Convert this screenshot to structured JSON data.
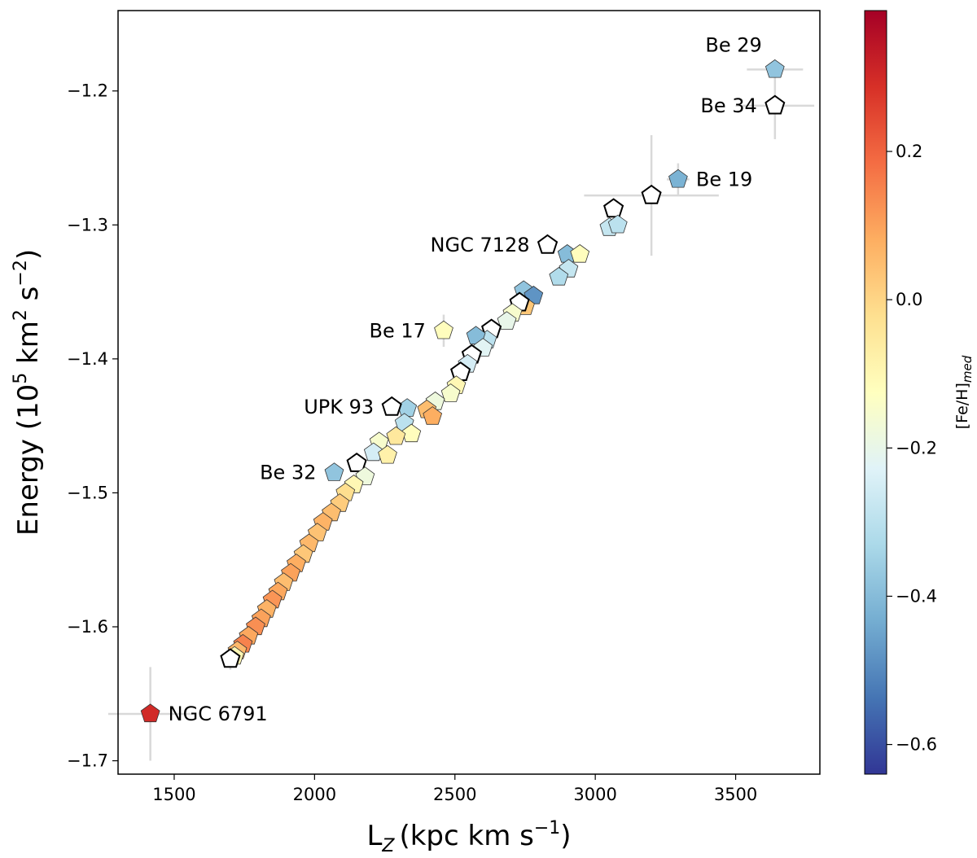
{
  "chart_data": {
    "type": "scatter",
    "marker": "pentagon",
    "title": "",
    "xlabel": "L",
    "xlabel_sub": "Z",
    "xlabel_units": "(kpc km s",
    "xlabel_units_sup": "−1",
    "xlabel_units_end": ")",
    "ylabel_pre": "Energy (10",
    "ylabel_sup1": "5",
    "ylabel_mid": " km",
    "ylabel_sup2": "2",
    "ylabel_mid2": " s",
    "ylabel_sup3": "−2",
    "ylabel_end": ")",
    "xlim": [
      1300,
      3800
    ],
    "ylim": [
      -1.71,
      -1.14
    ],
    "xticks": [
      1500,
      2000,
      2500,
      3000,
      3500
    ],
    "xtick_labels": [
      "1500",
      "2000",
      "2500",
      "3000",
      "3500"
    ],
    "yticks": [
      -1.2,
      -1.3,
      -1.4,
      -1.5,
      -1.6,
      -1.7
    ],
    "ytick_labels": [
      "−1.2",
      "−1.3",
      "−1.4",
      "−1.5",
      "−1.6",
      "−1.7"
    ],
    "colorbar": {
      "label_base": "[Fe/H]",
      "label_sub": "med",
      "range": [
        -0.64,
        0.39
      ],
      "cmap": "RdYlBu_r",
      "ticks": [
        0.2,
        0.0,
        -0.2,
        -0.4,
        -0.6
      ],
      "tick_labels": [
        "0.2",
        "0.0",
        "−0.2",
        "−0.4",
        "−0.6"
      ],
      "colors": [
        "#313695",
        "#4575b4",
        "#74add1",
        "#abd9e9",
        "#e0f3f8",
        "#ffffbf",
        "#fee090",
        "#fdae61",
        "#f46d43",
        "#d73027",
        "#a50026"
      ]
    },
    "labeled_points": [
      {
        "name": "Be 29",
        "x": 3640,
        "y": -1.184,
        "feh": -0.38,
        "xerr": 100,
        "yerr": 0.0,
        "label": "Be 29",
        "label_pos": "above-left"
      },
      {
        "name": "Be 34",
        "x": 3640,
        "y": -1.211,
        "feh": null,
        "xerr": 140,
        "yerr": 0.025,
        "label": "Be 34",
        "label_pos": "left"
      },
      {
        "name": "Be 19",
        "x": 3295,
        "y": -1.266,
        "feh": -0.42,
        "xerr": 40,
        "yerr": 0.012,
        "label": "Be 19",
        "label_pos": "right"
      },
      {
        "name": "NGC 7128",
        "x": 2830,
        "y": -1.315,
        "feh": null,
        "xerr": 0,
        "yerr": 0.0,
        "label": "NGC 7128",
        "label_pos": "left"
      },
      {
        "name": "Be 17",
        "x": 2460,
        "y": -1.379,
        "feh": -0.12,
        "xerr": 0,
        "yerr": 0.012,
        "label": "Be 17",
        "label_pos": "left"
      },
      {
        "name": "UPK 93",
        "x": 2275,
        "y": -1.436,
        "feh": null,
        "xerr": 0,
        "yerr": 0.0,
        "label": "UPK 93",
        "label_pos": "left"
      },
      {
        "name": "Be 32",
        "x": 2070,
        "y": -1.485,
        "feh": -0.38,
        "xerr": 0,
        "yerr": 0.0,
        "label": "Be 32",
        "label_pos": "left"
      },
      {
        "name": "NGC 6791",
        "x": 1415,
        "y": -1.665,
        "feh": 0.3,
        "xerr": 150,
        "yerr": 0.035,
        "label": "NGC 6791",
        "label_pos": "right"
      }
    ],
    "points": [
      {
        "x": 3200,
        "y": -1.278,
        "feh": null,
        "xerr": 240,
        "yerr": 0.045
      },
      {
        "x": 3065,
        "y": -1.288,
        "feh": null,
        "xerr": 0,
        "yerr": 0.0
      },
      {
        "x": 3050,
        "y": -1.302,
        "feh": -0.28,
        "xerr": 0,
        "yerr": 0.0
      },
      {
        "x": 3080,
        "y": -1.3,
        "feh": -0.3,
        "xerr": 0,
        "yerr": 0.0
      },
      {
        "x": 2900,
        "y": -1.322,
        "feh": -0.4,
        "xerr": 0,
        "yerr": 0.0
      },
      {
        "x": 2945,
        "y": -1.322,
        "feh": -0.12,
        "xerr": 0,
        "yerr": 0.0
      },
      {
        "x": 2905,
        "y": -1.333,
        "feh": -0.28,
        "xerr": 0,
        "yerr": 0.0
      },
      {
        "x": 2870,
        "y": -1.339,
        "feh": -0.32,
        "xerr": 0,
        "yerr": 0.0
      },
      {
        "x": 2745,
        "y": -1.349,
        "feh": -0.38,
        "xerr": 0,
        "yerr": 0.0
      },
      {
        "x": 2780,
        "y": -1.353,
        "feh": -0.48,
        "xerr": 0,
        "yerr": 0.0
      },
      {
        "x": 2750,
        "y": -1.361,
        "feh": 0.03,
        "xerr": 0,
        "yerr": 0.0
      },
      {
        "x": 2730,
        "y": -1.358,
        "feh": null,
        "xerr": 0,
        "yerr": 0.0
      },
      {
        "x": 2705,
        "y": -1.366,
        "feh": -0.15,
        "xerr": 0,
        "yerr": 0.0
      },
      {
        "x": 2685,
        "y": -1.372,
        "feh": -0.2,
        "xerr": 0,
        "yerr": 0.0
      },
      {
        "x": 2630,
        "y": -1.378,
        "feh": null,
        "xerr": 0,
        "yerr": 0.0
      },
      {
        "x": 2615,
        "y": -1.386,
        "feh": -0.3,
        "xerr": 0,
        "yerr": 0.0
      },
      {
        "x": 2575,
        "y": -1.383,
        "feh": -0.4,
        "xerr": 0,
        "yerr": 0.0
      },
      {
        "x": 2600,
        "y": -1.392,
        "feh": -0.22,
        "xerr": 0,
        "yerr": 0.0
      },
      {
        "x": 2560,
        "y": -1.397,
        "feh": null,
        "xerr": 0,
        "yerr": 0.0
      },
      {
        "x": 2545,
        "y": -1.404,
        "feh": -0.25,
        "xerr": 0,
        "yerr": 0.0
      },
      {
        "x": 2520,
        "y": -1.41,
        "feh": null,
        "xerr": 0,
        "yerr": 0.0
      },
      {
        "x": 2505,
        "y": -1.42,
        "feh": -0.1,
        "xerr": 0,
        "yerr": 0.0
      },
      {
        "x": 2485,
        "y": -1.426,
        "feh": -0.15,
        "xerr": 0,
        "yerr": 0.0
      },
      {
        "x": 2430,
        "y": -1.432,
        "feh": -0.18,
        "xerr": 0,
        "yerr": 0.0
      },
      {
        "x": 2400,
        "y": -1.438,
        "feh": 0.05,
        "xerr": 0,
        "yerr": 0.0
      },
      {
        "x": 2420,
        "y": -1.443,
        "feh": 0.08,
        "xerr": 0,
        "yerr": 0.0
      },
      {
        "x": 2330,
        "y": -1.437,
        "feh": -0.35,
        "xerr": 0,
        "yerr": 0.0
      },
      {
        "x": 2320,
        "y": -1.448,
        "feh": -0.3,
        "xerr": 0,
        "yerr": 0.0
      },
      {
        "x": 2345,
        "y": -1.456,
        "feh": -0.12,
        "xerr": 0,
        "yerr": 0.0
      },
      {
        "x": 2290,
        "y": -1.458,
        "feh": -0.05,
        "xerr": 0,
        "yerr": 0.0
      },
      {
        "x": 2230,
        "y": -1.462,
        "feh": -0.15,
        "xerr": 0,
        "yerr": 0.0
      },
      {
        "x": 2210,
        "y": -1.47,
        "feh": -0.25,
        "xerr": 0,
        "yerr": 0.0
      },
      {
        "x": 2260,
        "y": -1.472,
        "feh": -0.08,
        "xerr": 0,
        "yerr": 0.0
      },
      {
        "x": 2150,
        "y": -1.478,
        "feh": null,
        "xerr": 0,
        "yerr": 0.0
      },
      {
        "x": 2180,
        "y": -1.488,
        "feh": -0.18,
        "xerr": 0,
        "yerr": 0.0
      },
      {
        "x": 2140,
        "y": -1.494,
        "feh": -0.1,
        "xerr": 0,
        "yerr": 0.0
      },
      {
        "x": 2110,
        "y": -1.5,
        "feh": -0.02,
        "xerr": 0,
        "yerr": 0.0
      },
      {
        "x": 2090,
        "y": -1.508,
        "feh": 0.02,
        "xerr": 0,
        "yerr": 0.0
      },
      {
        "x": 2060,
        "y": -1.515,
        "feh": 0.05,
        "xerr": 0,
        "yerr": 0.0
      },
      {
        "x": 2030,
        "y": -1.522,
        "feh": 0.07,
        "xerr": 0,
        "yerr": 0.0
      },
      {
        "x": 2010,
        "y": -1.53,
        "feh": 0.04,
        "xerr": 0,
        "yerr": 0.0
      },
      {
        "x": 1980,
        "y": -1.538,
        "feh": 0.06,
        "xerr": 0,
        "yerr": 0.0
      },
      {
        "x": 1960,
        "y": -1.546,
        "feh": 0.03,
        "xerr": 0,
        "yerr": 0.0
      },
      {
        "x": 1935,
        "y": -1.553,
        "feh": 0.08,
        "xerr": 0,
        "yerr": 0.0
      },
      {
        "x": 1915,
        "y": -1.56,
        "feh": 0.1,
        "xerr": 0,
        "yerr": 0.0
      },
      {
        "x": 1890,
        "y": -1.567,
        "feh": 0.05,
        "xerr": 0,
        "yerr": 0.0
      },
      {
        "x": 1870,
        "y": -1.574,
        "feh": 0.09,
        "xerr": 0,
        "yerr": 0.0
      },
      {
        "x": 1850,
        "y": -1.58,
        "feh": 0.12,
        "xerr": 0,
        "yerr": 0.0
      },
      {
        "x": 1830,
        "y": -1.587,
        "feh": 0.07,
        "xerr": 0,
        "yerr": 0.0
      },
      {
        "x": 1810,
        "y": -1.594,
        "feh": 0.1,
        "xerr": 0,
        "yerr": 0.0
      },
      {
        "x": 1790,
        "y": -1.6,
        "feh": 0.13,
        "xerr": 0,
        "yerr": 0.0
      },
      {
        "x": 1765,
        "y": -1.607,
        "feh": 0.09,
        "xerr": 0,
        "yerr": 0.0
      },
      {
        "x": 1745,
        "y": -1.613,
        "feh": 0.15,
        "xerr": 0,
        "yerr": 0.0
      },
      {
        "x": 1725,
        "y": -1.618,
        "feh": 0.06,
        "xerr": 0,
        "yerr": 0.0
      },
      {
        "x": 1715,
        "y": -1.622,
        "feh": -0.1,
        "xerr": 0,
        "yerr": 0.0
      },
      {
        "x": 1700,
        "y": -1.624,
        "feh": null,
        "xerr": 0,
        "yerr": 0.008
      }
    ]
  }
}
